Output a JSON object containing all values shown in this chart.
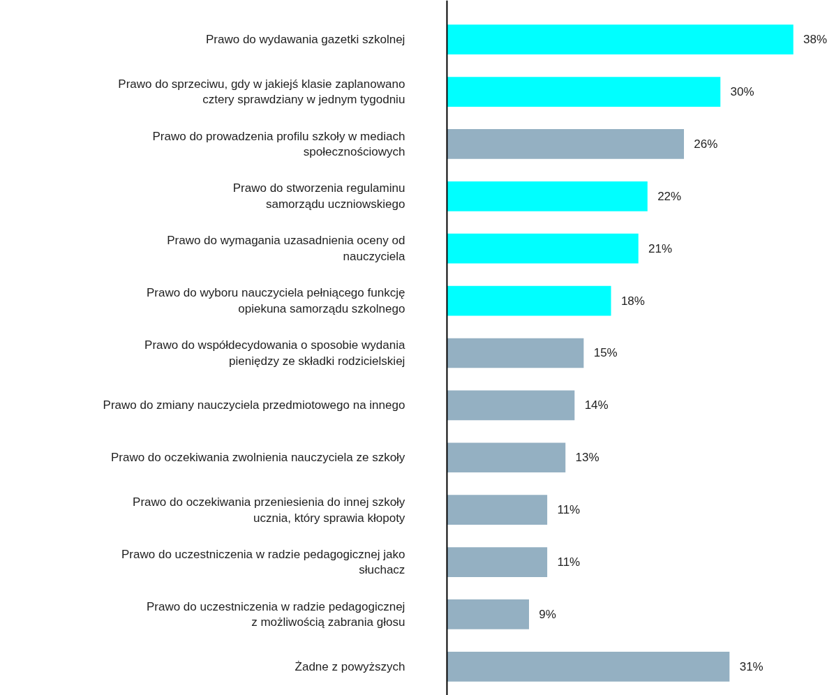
{
  "chart_data": {
    "type": "bar",
    "orientation": "horizontal",
    "categories": [
      "Prawo do wydawania gazetki szkolnej",
      "Prawo do sprzeciwu, gdy w jakiejś klasie zaplanowano\ncztery sprawdziany w jednym tygodniu",
      "Prawo do prowadzenia profilu szkoły w mediach\nspołecznościowych",
      "Prawo do stworzenia regulaminu\nsamorządu uczniowskiego",
      "Prawo do wymagania uzasadnienia oceny od\nnauczyciela",
      "Prawo do wyboru nauczyciela pełniącego funkcję\nopiekuna samorządu szkolnego",
      "Prawo do współdecydowania o sposobie wydania\npieniędzy ze składki rodzicielskiej",
      "Prawo do zmiany nauczyciela przedmiotowego na innego",
      "Prawo do oczekiwania zwolnienia nauczyciela ze szkoły",
      "Prawo do oczekiwania przeniesienia do innej szkoły\nucznia, który sprawia kłopoty",
      "Prawo do uczestniczenia w radzie pedagogicznej jako\nsłuchacz",
      "Prawo do uczestniczenia w radzie pedagogicznej\nz możliwością zabrania głosu",
      "Żadne z powyższych"
    ],
    "values": [
      38,
      30,
      26,
      22,
      21,
      18,
      15,
      14,
      13,
      11,
      11,
      9,
      31
    ],
    "colors": [
      "#00ffff",
      "#00ffff",
      "#94b0c2",
      "#00ffff",
      "#00ffff",
      "#00ffff",
      "#94b0c2",
      "#94b0c2",
      "#94b0c2",
      "#94b0c2",
      "#94b0c2",
      "#94b0c2",
      "#94b0c2"
    ],
    "value_labels": [
      "38%",
      "30%",
      "26%",
      "22%",
      "21%",
      "18%",
      "15%",
      "14%",
      "13%",
      "11%",
      "11%",
      "9%",
      "31%"
    ],
    "grid": false
  }
}
